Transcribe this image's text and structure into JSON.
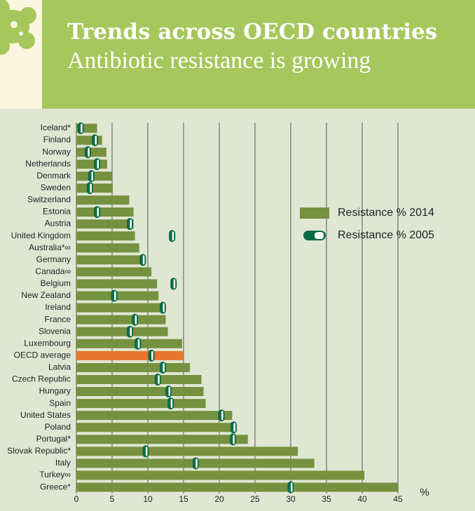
{
  "chart_data": {
    "type": "bar",
    "title": "Trends across OECD countries",
    "subtitle": "Antibiotic resistance is growing",
    "xlabel": "%",
    "categories": [
      "Iceland*",
      "Finland",
      "Norway",
      "Netherlands",
      "Denmark",
      "Sweden",
      "Switzerland",
      "Estonia",
      "Austria",
      "United Kingdom",
      "Australia*∞",
      "Germany",
      "Canada∞",
      "Belgium",
      "New Zealand",
      "Ireland",
      "France",
      "Slovenia",
      "Luxembourg",
      "OECD average",
      "Latvia",
      "Czech Republic",
      "Hungary",
      "Spain",
      "United States",
      "Poland",
      "Portugal*",
      "Slovak Republic*",
      "Italy",
      "Turkey∞",
      "Greece*"
    ],
    "series": [
      {
        "name": "Resistance % 2014",
        "color": "#76913f",
        "values": [
          2.9,
          3.6,
          4.2,
          4.3,
          5.0,
          5.1,
          7.4,
          8.0,
          8.0,
          8.2,
          8.8,
          9.4,
          10.5,
          11.3,
          11.5,
          12.4,
          12.5,
          12.8,
          14.8,
          15.0,
          15.9,
          17.5,
          17.8,
          18.1,
          21.8,
          22.0,
          24.0,
          31.0,
          33.3,
          40.3,
          45.0
        ]
      },
      {
        "name": "Resistance % 2005",
        "color": "#0b6b45",
        "values": [
          0.6,
          2.6,
          1.6,
          2.9,
          2.1,
          1.9,
          null,
          2.9,
          7.5,
          13.4,
          null,
          9.3,
          null,
          13.6,
          5.3,
          12.1,
          8.2,
          7.5,
          8.6,
          10.5,
          12.1,
          11.4,
          12.9,
          13.2,
          20.3,
          22.0,
          21.9,
          9.7,
          16.7,
          null,
          30.0
        ]
      }
    ],
    "highlight_category": "OECD average",
    "highlight_color": "#e8762d",
    "xlim": [
      0,
      45
    ],
    "xticks": [
      0,
      5,
      10,
      15,
      20,
      25,
      30,
      35,
      40,
      45
    ],
    "grid": true
  }
}
